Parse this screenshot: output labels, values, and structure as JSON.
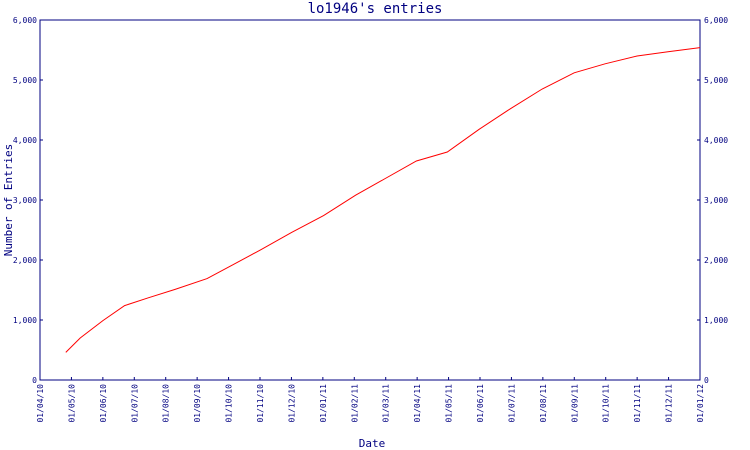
{
  "chart_data": {
    "type": "line",
    "title": "lo1946's entries",
    "xlabel": "Date",
    "ylabel": "Number of Entries",
    "x_ticks": [
      "01/04/10",
      "01/05/10",
      "01/06/10",
      "01/07/10",
      "01/08/10",
      "01/09/10",
      "01/10/10",
      "01/11/10",
      "01/12/10",
      "01/01/11",
      "01/02/11",
      "01/03/11",
      "01/04/11",
      "01/05/11",
      "01/06/11",
      "01/07/11",
      "01/08/11",
      "01/09/11",
      "01/10/11",
      "01/11/11",
      "01/12/11",
      "01/01/12"
    ],
    "xlim": [
      "2010-04-01",
      "2012-01-01"
    ],
    "y_ticks": [
      "0",
      "1,000",
      "2,000",
      "3,000",
      "4,000",
      "5,000",
      "6,000"
    ],
    "ylim": [
      0,
      6000
    ],
    "grid": false,
    "colors": {
      "line": "#ff0000",
      "axis": "#000080"
    },
    "series": [
      {
        "points": [
          [
            "2010-04-26",
            460
          ],
          [
            "2010-05-10",
            700
          ],
          [
            "2010-06-01",
            990
          ],
          [
            "2010-06-22",
            1240
          ],
          [
            "2010-07-15",
            1370
          ],
          [
            "2010-08-10",
            1510
          ],
          [
            "2010-09-10",
            1690
          ],
          [
            "2010-10-05",
            1920
          ],
          [
            "2010-11-01",
            2170
          ],
          [
            "2010-12-01",
            2460
          ],
          [
            "2011-01-01",
            2740
          ],
          [
            "2011-02-01",
            3080
          ],
          [
            "2011-03-01",
            3350
          ],
          [
            "2011-04-01",
            3650
          ],
          [
            "2011-05-01",
            3800
          ],
          [
            "2011-06-01",
            4180
          ],
          [
            "2011-07-01",
            4520
          ],
          [
            "2011-08-01",
            4850
          ],
          [
            "2011-09-01",
            5120
          ],
          [
            "2011-10-01",
            5270
          ],
          [
            "2011-11-01",
            5400
          ],
          [
            "2011-12-01",
            5470
          ],
          [
            "2012-01-01",
            5540
          ]
        ]
      }
    ]
  }
}
